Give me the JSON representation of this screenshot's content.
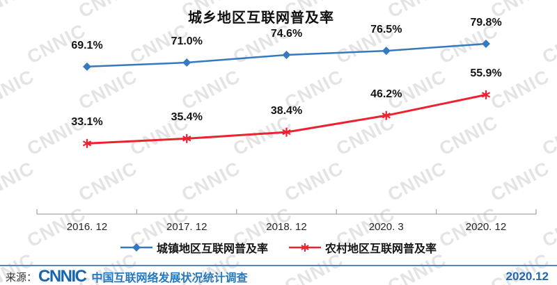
{
  "title": "城乡地区互联网普及率",
  "watermark_text": "CNNIC",
  "chart_data": {
    "type": "line",
    "title": "城乡地区互联网普及率",
    "categories": [
      "2016. 12",
      "2017. 12",
      "2018. 12",
      "2020. 3",
      "2020. 12"
    ],
    "series": [
      {
        "name": "城镇地区互联网普及率",
        "values": [
          69.1,
          71.0,
          74.6,
          76.5,
          79.8
        ],
        "color": "#3579bf",
        "marker": "diamond"
      },
      {
        "name": "农村地区互联网普及率",
        "values": [
          33.1,
          35.4,
          38.4,
          46.2,
          55.9
        ],
        "color": "#ee2130",
        "marker": "asterisk"
      }
    ],
    "data_label_format": "{value}%",
    "xlabel": "",
    "ylabel": "",
    "ylim": [
      0,
      95
    ],
    "grid": false,
    "legend_position": "bottom",
    "axis_color": "#a6a6a6"
  },
  "footer": {
    "source_label": "来源：",
    "logo": "CNNIC",
    "source_text": "中国互联网络发展状况统计调查",
    "date": "2020.12"
  }
}
